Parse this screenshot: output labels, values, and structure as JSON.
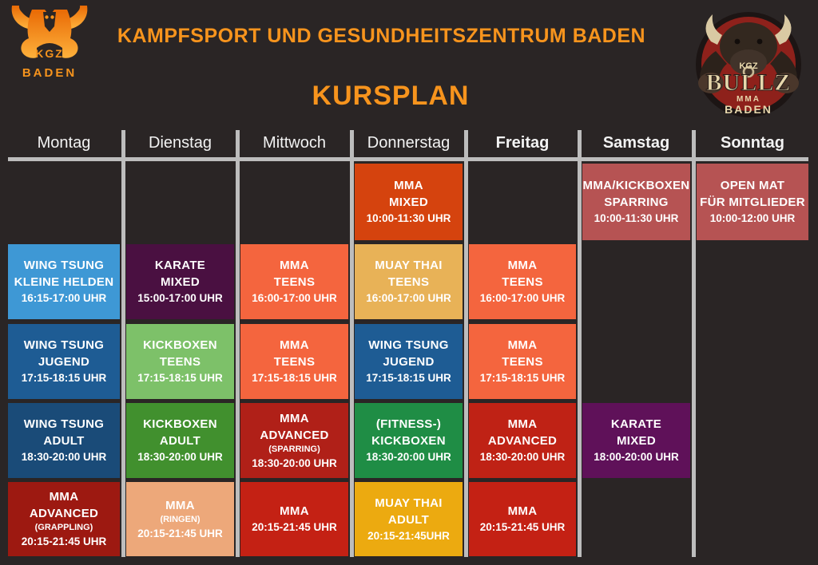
{
  "header": {
    "title": "KAMPFSPORT UND GESUNDHEITSZENTRUM BADEN",
    "subtitle": "KURSPLAN",
    "left_logo": {
      "line1": "KGZ",
      "line2": "BADEN"
    },
    "right_logo": {
      "kgz": "KGZ",
      "name": "BULLZ",
      "mma": "MMA",
      "baden": "BADEN"
    }
  },
  "colors": {
    "background": "#2a2525",
    "accent_orange": "#f7941d",
    "grid_line": "#bdbdbd",
    "muted_red": "#b65353",
    "bright_red": "#d5430e"
  },
  "schedule": {
    "days": [
      {
        "label": "Montag",
        "bold": false
      },
      {
        "label": "Dienstag",
        "bold": false
      },
      {
        "label": "Mittwoch",
        "bold": false
      },
      {
        "label": "Donnerstag",
        "bold": false
      },
      {
        "label": "Freitag",
        "bold": true
      },
      {
        "label": "Samstag",
        "bold": true
      },
      {
        "label": "Sonntag",
        "bold": true
      }
    ],
    "courses": [
      {
        "day": "Donnerstag",
        "col": 3,
        "row": 0,
        "lines": [
          "MMA",
          "MIXED"
        ],
        "time": "10:00-11:30 UHR",
        "bg": "#d5430e"
      },
      {
        "day": "Samstag",
        "col": 5,
        "row": 0,
        "lines": [
          "MMA/KICKBOXEN",
          "SPARRING"
        ],
        "time": "10:00-11:30 UHR",
        "bg": "#b65353"
      },
      {
        "day": "Sonntag",
        "col": 6,
        "row": 0,
        "lines": [
          "OPEN MAT",
          "FÜR MITGLIEDER"
        ],
        "time": "10:00-12:00 UHR",
        "bg": "#b65353"
      },
      {
        "day": "Montag",
        "col": 0,
        "row": 1,
        "lines": [
          "WING TSUNG",
          "KLEINE HELDEN"
        ],
        "time": "16:15-17:00 UHR",
        "bg": "#3e98d5"
      },
      {
        "day": "Dienstag",
        "col": 1,
        "row": 1,
        "lines": [
          "KARATE",
          "MIXED"
        ],
        "time": "15:00-17:00 UHR",
        "bg": "#4a1041"
      },
      {
        "day": "Mittwoch",
        "col": 2,
        "row": 1,
        "lines": [
          "MMA",
          "TEENS"
        ],
        "time": "16:00-17:00 UHR",
        "bg": "#f4653e"
      },
      {
        "day": "Donnerstag",
        "col": 3,
        "row": 1,
        "lines": [
          "MUAY THAI",
          "TEENS"
        ],
        "time": "16:00-17:00 UHR",
        "bg": "#e8b257"
      },
      {
        "day": "Freitag",
        "col": 4,
        "row": 1,
        "lines": [
          "MMA",
          "TEENS"
        ],
        "time": "16:00-17:00 UHR",
        "bg": "#f4653e"
      },
      {
        "day": "Montag",
        "col": 0,
        "row": 2,
        "lines": [
          "WING TSUNG",
          "JUGEND"
        ],
        "time": "17:15-18:15 UHR",
        "bg": "#1e5c94"
      },
      {
        "day": "Dienstag",
        "col": 1,
        "row": 2,
        "lines": [
          "KICKBOXEN",
          "TEENS"
        ],
        "time": "17:15-18:15 UHR",
        "bg": "#7dc169"
      },
      {
        "day": "Mittwoch",
        "col": 2,
        "row": 2,
        "lines": [
          "MMA",
          "TEENS"
        ],
        "time": "17:15-18:15 UHR",
        "bg": "#f4653e"
      },
      {
        "day": "Donnerstag",
        "col": 3,
        "row": 2,
        "lines": [
          "WING TSUNG",
          "JUGEND"
        ],
        "time": "17:15-18:15 UHR",
        "bg": "#1e5c94"
      },
      {
        "day": "Freitag",
        "col": 4,
        "row": 2,
        "lines": [
          "MMA",
          "TEENS"
        ],
        "time": "17:15-18:15 UHR",
        "bg": "#f4653e"
      },
      {
        "day": "Montag",
        "col": 0,
        "row": 3,
        "lines": [
          "WING TSUNG",
          "ADULT"
        ],
        "time": "18:30-20:00 UHR",
        "bg": "#1a4b78"
      },
      {
        "day": "Dienstag",
        "col": 1,
        "row": 3,
        "lines": [
          "KICKBOXEN",
          "ADULT"
        ],
        "time": "18:30-20:00 UHR",
        "bg": "#41902e"
      },
      {
        "day": "Mittwoch",
        "col": 2,
        "row": 3,
        "lines": [
          "MMA",
          "ADVANCED"
        ],
        "note": "(SPARRING)",
        "time": "18:30-20:00 UHR",
        "bg": "#b02018"
      },
      {
        "day": "Donnerstag",
        "col": 3,
        "row": 3,
        "lines": [
          "(FITNESS-)",
          "KICKBOXEN"
        ],
        "time": "18:30-20:00 UHR",
        "bg": "#1f8d45"
      },
      {
        "day": "Freitag",
        "col": 4,
        "row": 3,
        "lines": [
          "MMA",
          "ADVANCED"
        ],
        "time": "18:30-20:00 UHR",
        "bg": "#bf2215"
      },
      {
        "day": "Samstag",
        "col": 5,
        "row": 3,
        "lines": [
          "KARATE",
          "MIXED"
        ],
        "time": "18:00-20:00 UHR",
        "bg": "#5f1159"
      },
      {
        "day": "Montag",
        "col": 0,
        "row": 4,
        "lines": [
          "MMA",
          "ADVANCED"
        ],
        "note": "(GRAPPLING)",
        "time": "20:15-21:45 UHR",
        "bg": "#9d1911"
      },
      {
        "day": "Dienstag",
        "col": 1,
        "row": 4,
        "lines": [
          "MMA"
        ],
        "note": "(RINGEN)",
        "time": "20:15-21:45 UHR",
        "bg": "#eda87a"
      },
      {
        "day": "Mittwoch",
        "col": 2,
        "row": 4,
        "lines": [
          "MMA"
        ],
        "time": "20:15-21:45 UHR",
        "bg": "#c42114"
      },
      {
        "day": "Donnerstag",
        "col": 3,
        "row": 4,
        "lines": [
          "MUAY THAI",
          "ADULT"
        ],
        "time": "20:15-21:45UHR",
        "bg": "#ecaa10"
      },
      {
        "day": "Freitag",
        "col": 4,
        "row": 4,
        "lines": [
          "MMA"
        ],
        "time": "20:15-21:45 UHR",
        "bg": "#c42114"
      }
    ]
  }
}
